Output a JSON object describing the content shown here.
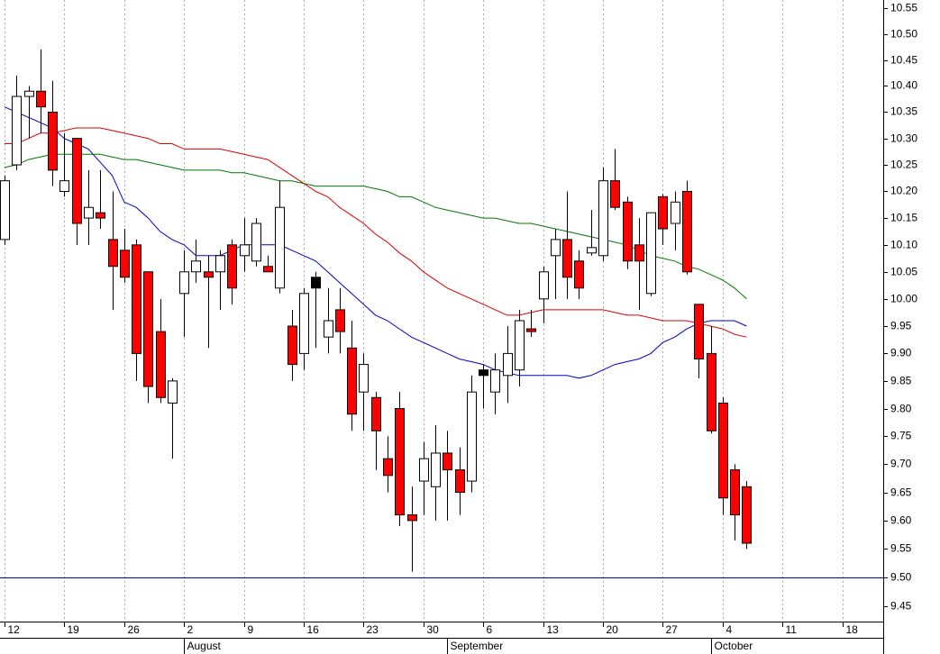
{
  "chart_data": {
    "type": "candlestick",
    "log_scale": true,
    "ylim": [
      9.423,
      10.566
    ],
    "yticks": [
      9.45,
      {
        "value": 9.5,
        "label": "9.50"
      },
      9.55,
      {
        "value": 9.6,
        "label": "9.60"
      },
      9.65,
      {
        "value": 9.7,
        "label": "9.70"
      },
      9.75,
      {
        "value": 9.8,
        "label": "9.80"
      },
      9.85,
      {
        "value": 9.9,
        "label": "9.90"
      },
      9.95,
      {
        "value": 10,
        "label": "10.00"
      },
      10.05,
      {
        "value": 10.1,
        "label": "10.10"
      },
      10.15,
      {
        "value": 10.2,
        "label": "10.20"
      },
      10.25,
      {
        "value": 10.3,
        "label": "10.30"
      },
      10.35,
      {
        "value": 10.4,
        "label": "10.40"
      },
      10.45,
      {
        "value": 10.5,
        "label": "10.50"
      },
      10.55
    ],
    "hline": {
      "value": 9.5,
      "color": "#0000cc"
    },
    "categories": [
      "12",
      null,
      null,
      null,
      null,
      "19",
      null,
      null,
      null,
      null,
      "26",
      null,
      null,
      null,
      null,
      "2",
      null,
      null,
      null,
      null,
      "9",
      null,
      null,
      null,
      null,
      "16",
      null,
      null,
      null,
      null,
      "23",
      null,
      null,
      null,
      null,
      "30",
      null,
      null,
      null,
      null,
      "6",
      null,
      null,
      null,
      null,
      "13",
      null,
      null,
      null,
      null,
      "20",
      null,
      null,
      null,
      null,
      "27",
      null,
      null,
      null,
      null,
      "4",
      null,
      null,
      null,
      null,
      "11",
      null,
      null,
      null,
      null,
      "18",
      null,
      null,
      null
    ],
    "month_labels": [
      null,
      null,
      null,
      null,
      null,
      null,
      null,
      null,
      null,
      null,
      null,
      null,
      null,
      null,
      null,
      "August",
      null,
      null,
      null,
      null,
      null,
      null,
      null,
      null,
      null,
      null,
      null,
      null,
      null,
      null,
      null,
      null,
      null,
      null,
      null,
      null,
      null,
      "September",
      null,
      null,
      null,
      null,
      null,
      null,
      null,
      null,
      null,
      null,
      null,
      null,
      null,
      null,
      null,
      null,
      null,
      null,
      null,
      null,
      null,
      "October",
      null,
      null,
      null,
      null,
      null,
      null,
      null,
      null,
      null,
      null,
      null,
      null,
      null,
      null
    ],
    "open": [
      10.11,
      10.25,
      10.38,
      10.39,
      10.35,
      10.2,
      10.3,
      10.15,
      10.16,
      10.11,
      10.09,
      10.1,
      10.05,
      9.94,
      9.81,
      10.01,
      10.05,
      10.05,
      10.05,
      10.1,
      10.08,
      10.07,
      10.06,
      10.02,
      9.95,
      9.9,
      10.04,
      9.93,
      9.98,
      9.91,
      9.83,
      9.82,
      9.71,
      9.8,
      9.61,
      9.67,
      9.66,
      9.72,
      9.69,
      9.67,
      9.87,
      9.83,
      9.86,
      9.87,
      9.945,
      10.0,
      10.08,
      10.11,
      10.07,
      10.085,
      10.08,
      10.22,
      10.18,
      10.1,
      10.01,
      10.19,
      10.14,
      10.2,
      9.99,
      9.9,
      9.81,
      9.69,
      9.66,
      null,
      null,
      null,
      null,
      null,
      null,
      null,
      null,
      null,
      null,
      null
    ],
    "high": [
      10.23,
      10.42,
      10.4,
      10.47,
      10.41,
      10.31,
      10.3,
      10.24,
      10.24,
      10.2,
      10.13,
      10.11,
      10.05,
      10.0,
      9.855,
      10.09,
      10.11,
      10.08,
      10.09,
      10.11,
      10.15,
      10.15,
      10.08,
      10.22,
      9.98,
      10.02,
      10.05,
      10.02,
      10.02,
      9.96,
      9.9,
      9.83,
      9.75,
      9.83,
      9.66,
      9.74,
      9.77,
      9.76,
      9.73,
      9.86,
      9.88,
      9.9,
      9.95,
      9.98,
      9.98,
      10.06,
      10.13,
      10.2,
      10.09,
      10.165,
      10.245,
      10.28,
      10.19,
      10.15,
      10.16,
      10.195,
      10.2,
      10.22,
      9.99,
      9.95,
      9.82,
      9.7,
      9.67,
      null,
      null,
      null,
      null,
      null,
      null,
      null,
      null,
      null,
      null,
      null
    ],
    "low": [
      10.1,
      10.24,
      10.3,
      10.31,
      10.21,
      10.19,
      10.1,
      10.1,
      10.13,
      9.98,
      10.03,
      9.85,
      9.81,
      9.81,
      9.71,
      9.93,
      10.03,
      9.91,
      9.98,
      9.99,
      10.05,
      10.06,
      10.05,
      10.01,
      9.85,
      9.87,
      9.91,
      9.9,
      9.9,
      9.76,
      9.76,
      9.69,
      9.65,
      9.59,
      9.51,
      9.61,
      9.6,
      9.6,
      9.61,
      9.65,
      9.8,
      9.79,
      9.81,
      9.84,
      9.93,
      9.955,
      10.0,
      10.0,
      10.0,
      10.08,
      10.07,
      10.165,
      10.055,
      9.98,
      10.005,
      10.1,
      10.09,
      10.045,
      9.855,
      9.755,
      9.61,
      9.565,
      9.55,
      null,
      null,
      null,
      null,
      null,
      null,
      null,
      null,
      null,
      null,
      null
    ],
    "close": [
      10.22,
      10.38,
      10.39,
      10.36,
      10.24,
      10.22,
      10.14,
      10.17,
      10.15,
      10.06,
      10.04,
      9.9,
      9.84,
      9.82,
      9.85,
      10.05,
      10.07,
      10.04,
      10.08,
      10.02,
      10.1,
      10.14,
      10.05,
      10.17,
      9.88,
      10.01,
      10.02,
      9.96,
      9.94,
      9.79,
      9.88,
      9.76,
      9.68,
      9.61,
      9.6,
      9.71,
      9.72,
      9.69,
      9.65,
      9.83,
      9.86,
      9.87,
      9.9,
      9.96,
      9.94,
      10.05,
      10.11,
      10.04,
      10.02,
      10.095,
      10.22,
      10.17,
      10.07,
      10.07,
      10.16,
      10.13,
      10.18,
      10.05,
      9.89,
      9.76,
      9.64,
      9.61,
      9.56,
      null,
      null,
      null,
      null,
      null,
      null,
      null,
      null,
      null,
      null,
      null
    ],
    "candle_colors": [
      "#ffffff",
      "#ffffff",
      "#ffffff",
      "#ff0000",
      "#ff0000",
      "#ffffff",
      "#ff0000",
      "#ffffff",
      "#ff0000",
      "#ff0000",
      "#ff0000",
      "#ff0000",
      "#ff0000",
      "#ff0000",
      "#ffffff",
      "#ffffff",
      "#ffffff",
      "#ff0000",
      "#ffffff",
      "#ff0000",
      "#ffffff",
      "#ffffff",
      "#ff0000",
      "#ffffff",
      "#ff0000",
      "#ffffff",
      "#000000",
      "#ffffff",
      "#ff0000",
      "#ff0000",
      "#ffffff",
      "#ff0000",
      "#ff0000",
      "#ff0000",
      "#ff0000",
      "#ffffff",
      "#ffffff",
      "#ff0000",
      "#ff0000",
      "#ffffff",
      "#000000",
      "#ffffff",
      "#ffffff",
      "#ffffff",
      "#ff0000",
      "#ffffff",
      "#ffffff",
      "#ff0000",
      "#ff0000",
      "#ffffff",
      "#ffffff",
      "#ff0000",
      "#ff0000",
      "#ff0000",
      "#ffffff",
      "#ff0000",
      "#ffffff",
      "#ff0000",
      "#ff0000",
      "#ff0000",
      "#ff0000",
      "#ff0000",
      "#ff0000",
      null,
      null,
      null,
      null,
      null,
      null,
      null,
      null,
      null,
      null,
      null
    ],
    "lines": [
      {
        "color": "#0000cc",
        "values": [
          10.36,
          10.35,
          10.34,
          10.33,
          10.32,
          10.3,
          10.29,
          10.28,
          10.255,
          10.23,
          10.18,
          10.17,
          10.15,
          10.125,
          10.11,
          10.1,
          10.08,
          10.08,
          10.08,
          10.09,
          10.1,
          10.1,
          10.1,
          10.1,
          10.09,
          10.08,
          10.07,
          10.05,
          10.03,
          10.01,
          9.99,
          9.97,
          9.96,
          9.945,
          9.93,
          9.92,
          9.91,
          9.9,
          9.89,
          9.885,
          9.88,
          9.87,
          9.865,
          9.86,
          9.86,
          9.86,
          9.86,
          9.86,
          9.855,
          9.86,
          9.87,
          9.88,
          9.885,
          9.89,
          9.9,
          9.92,
          9.93,
          9.945,
          9.955,
          9.96,
          9.96,
          9.96,
          9.95,
          null,
          null,
          null,
          null,
          null,
          null,
          null,
          null,
          null,
          null,
          null
        ]
      },
      {
        "color": "#dd0000",
        "values": [
          10.29,
          10.29,
          10.3,
          10.31,
          10.31,
          10.315,
          10.32,
          10.32,
          10.32,
          10.315,
          10.31,
          10.305,
          10.3,
          10.29,
          10.29,
          10.28,
          10.28,
          10.28,
          10.28,
          10.275,
          10.27,
          10.265,
          10.26,
          10.245,
          10.23,
          10.215,
          10.2,
          10.19,
          10.17,
          10.155,
          10.14,
          10.12,
          10.105,
          10.085,
          10.07,
          10.05,
          10.035,
          10.02,
          10.01,
          10.0,
          9.99,
          9.98,
          9.97,
          9.97,
          9.975,
          9.98,
          9.98,
          9.98,
          9.98,
          9.98,
          9.98,
          9.975,
          9.97,
          9.97,
          9.965,
          9.96,
          9.96,
          9.96,
          9.955,
          9.95,
          9.945,
          9.935,
          9.93,
          null,
          null,
          null,
          null,
          null,
          null,
          null,
          null,
          null,
          null,
          null
        ]
      },
      {
        "color": "#007700",
        "values": [
          10.245,
          10.25,
          10.26,
          10.265,
          10.27,
          10.27,
          10.27,
          10.27,
          10.27,
          10.265,
          10.26,
          10.26,
          10.255,
          10.25,
          10.245,
          10.24,
          10.24,
          10.24,
          10.24,
          10.235,
          10.235,
          10.23,
          10.225,
          10.22,
          10.22,
          10.215,
          10.21,
          10.21,
          10.21,
          10.21,
          10.21,
          10.205,
          10.2,
          10.19,
          10.19,
          10.18,
          10.17,
          10.165,
          10.16,
          10.155,
          10.15,
          10.15,
          10.145,
          10.14,
          10.14,
          10.135,
          10.13,
          10.125,
          10.12,
          10.115,
          10.11,
          10.105,
          10.1,
          10.09,
          10.08,
          10.075,
          10.07,
          10.06,
          10.055,
          10.045,
          10.035,
          10.02,
          10.0,
          null,
          null,
          null,
          null,
          null,
          null,
          null,
          null,
          null,
          null,
          null
        ]
      }
    ],
    "grid": true
  }
}
